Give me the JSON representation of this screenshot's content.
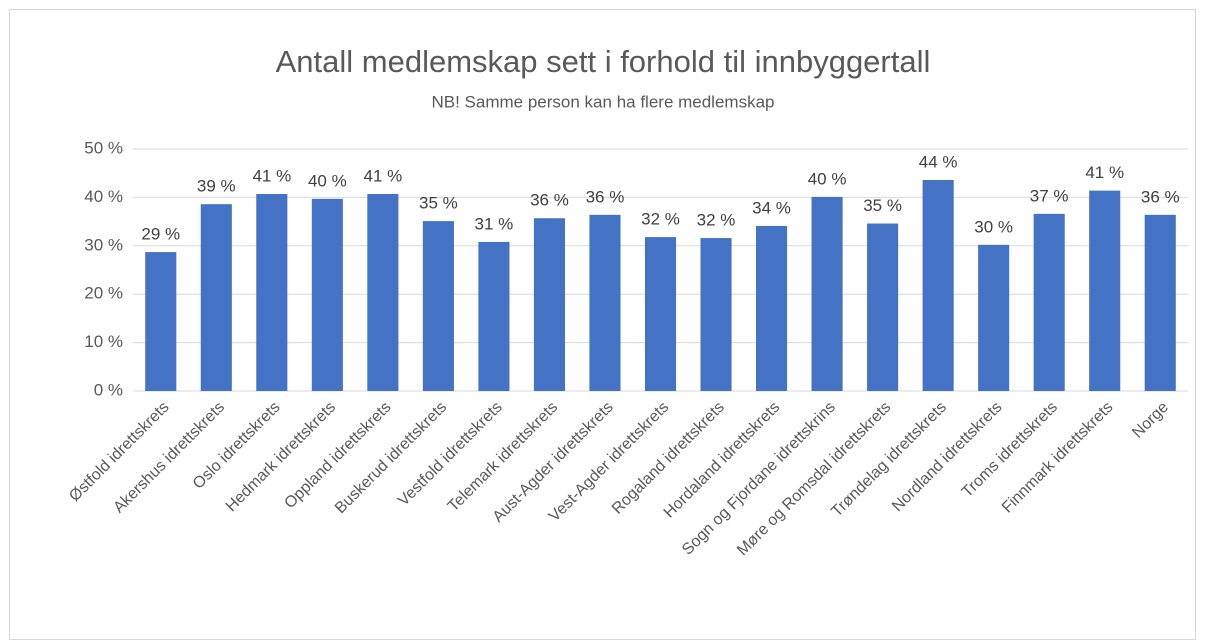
{
  "chart_data": {
    "type": "bar",
    "title": "Antall medlemskap sett i forhold til innbyggertall",
    "subtitle": "NB! Samme person kan ha flere medlemskap",
    "categories": [
      "Østfold idrettskrets",
      "Akershus idrettskrets",
      "Oslo idrettskrets",
      "Hedmark idrettskrets",
      "Oppland idrettskrets",
      "Buskerud idrettskrets",
      "Vestfold idrettskrets",
      "Telemark idrettskrets",
      "Aust-Agder idrettskrets",
      "Vest-Agder idrettskrets",
      "Rogaland idrettskrets",
      "Hordaland idrettskrets",
      "Sogn og Fjordane idrettskrins",
      "Møre og Romsdal idrettskrets",
      "Trøndelag idrettskrets",
      "Nordland idrettskrets",
      "Troms idrettskrets",
      "Finnmark idrettskrets",
      "Norge"
    ],
    "values": [
      28.7,
      38.6,
      40.7,
      39.7,
      40.7,
      35.1,
      30.8,
      35.7,
      36.4,
      31.8,
      31.6,
      34.1,
      40.1,
      34.6,
      43.6,
      30.2,
      36.6,
      41.4,
      36.4
    ],
    "value_labels": [
      "29 %",
      "39 %",
      "41 %",
      "40 %",
      "41 %",
      "35 %",
      "31 %",
      "36 %",
      "36 %",
      "32 %",
      "32 %",
      "34 %",
      "40 %",
      "35 %",
      "44 %",
      "30 %",
      "37 %",
      "41 %",
      "36 %"
    ],
    "color": "#4472c4",
    "ylim": [
      0,
      50
    ],
    "yticks": [
      {
        "value": 0,
        "label": "0 %"
      },
      {
        "value": 10,
        "label": "10 %"
      },
      {
        "value": 20,
        "label": "20 %"
      },
      {
        "value": 30,
        "label": "30 %"
      },
      {
        "value": 40,
        "label": "40 %"
      },
      {
        "value": 50,
        "label": "50 %"
      }
    ],
    "grid": true
  }
}
